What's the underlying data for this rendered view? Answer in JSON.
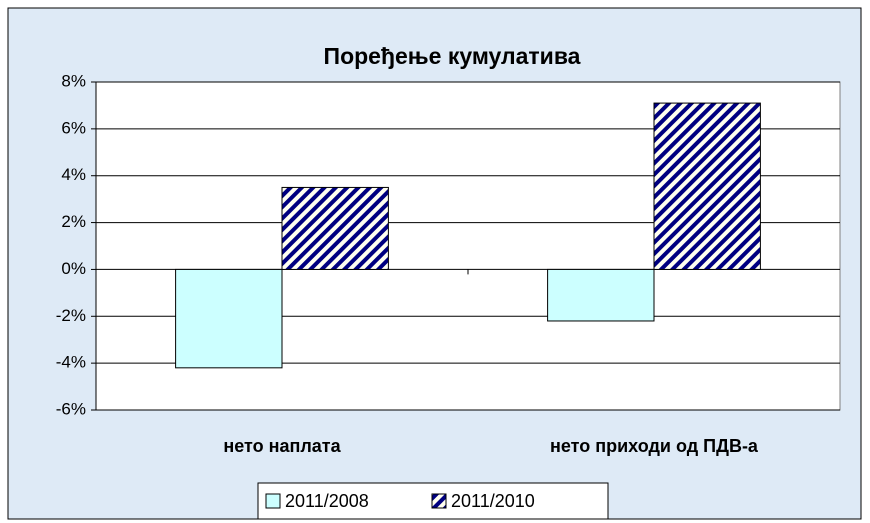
{
  "chart_data": {
    "type": "bar",
    "title": "Поређење кумулатива",
    "categories": [
      "нето наплата",
      "нето приходи од ПДВ-а"
    ],
    "series": [
      {
        "name": "2011/2008",
        "color": "#ccffff",
        "values": [
          -4.2,
          -2.2
        ]
      },
      {
        "name": "2011/2010",
        "color": "#000080",
        "hatch": true,
        "values": [
          3.5,
          7.1
        ]
      }
    ],
    "ylim": [
      -6,
      8
    ],
    "yticks": [
      {
        "value": -6,
        "label": "-6%"
      },
      {
        "value": -4,
        "label": "-4%"
      },
      {
        "value": -2,
        "label": "-2%"
      },
      {
        "value": 0,
        "label": "0%"
      },
      {
        "value": 2,
        "label": "2%"
      },
      {
        "value": 4,
        "label": "4%"
      },
      {
        "value": 6,
        "label": "6%"
      },
      {
        "value": 8,
        "label": "8%"
      }
    ],
    "grid": true,
    "legend": "bottom"
  }
}
